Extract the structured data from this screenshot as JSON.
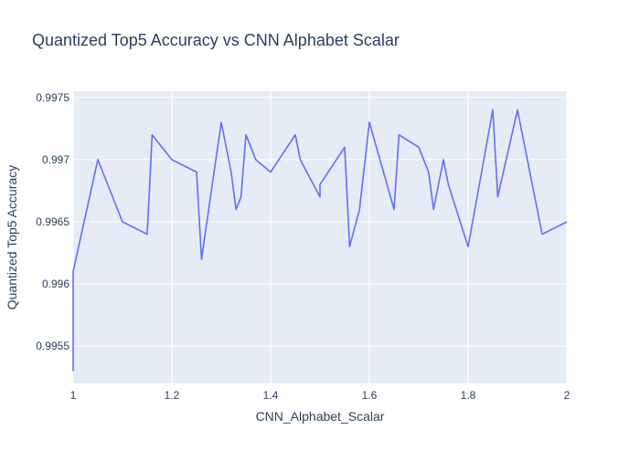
{
  "chart_data": {
    "type": "line",
    "title": "Quantized Top5 Accuracy vs CNN Alphabet Scalar",
    "xlabel": "CNN_Alphabet_Scalar",
    "ylabel": "Quantized Top5 Accuracy",
    "xlim": [
      1,
      2
    ],
    "ylim": [
      0.9952,
      0.99755
    ],
    "x_ticks": [
      1,
      1.2,
      1.4,
      1.6,
      1.8,
      2
    ],
    "x_tick_labels": [
      "1",
      "1.2",
      "1.4",
      "1.6",
      "1.8",
      "2"
    ],
    "y_ticks": [
      0.9955,
      0.996,
      0.9965,
      0.997,
      0.9975
    ],
    "y_tick_labels": [
      "0.9955",
      "0.996",
      "0.9965",
      "0.997",
      "0.9975"
    ],
    "grid": true,
    "colors": {
      "line": "#636efa",
      "plot_bg": "#e5ecf6"
    },
    "series": [
      {
        "x": [
          1.0,
          1.0,
          1.05,
          1.1,
          1.15,
          1.16,
          1.2,
          1.25,
          1.26,
          1.3,
          1.32,
          1.33,
          1.34,
          1.35,
          1.37,
          1.4,
          1.45,
          1.46,
          1.5,
          1.5,
          1.55,
          1.56,
          1.58,
          1.6,
          1.65,
          1.66,
          1.7,
          1.72,
          1.73,
          1.75,
          1.76,
          1.8,
          1.85,
          1.86,
          1.9,
          1.95,
          2.0
        ],
        "y": [
          0.9953,
          0.9961,
          0.997,
          0.9965,
          0.9964,
          0.9972,
          0.997,
          0.9969,
          0.9962,
          0.9973,
          0.9969,
          0.9966,
          0.9967,
          0.9972,
          0.997,
          0.9969,
          0.9972,
          0.997,
          0.9967,
          0.9968,
          0.9971,
          0.9963,
          0.9966,
          0.9973,
          0.9966,
          0.9972,
          0.9971,
          0.9969,
          0.9966,
          0.997,
          0.9968,
          0.9963,
          0.9974,
          0.9967,
          0.9974,
          0.9964,
          0.9965
        ]
      }
    ]
  }
}
